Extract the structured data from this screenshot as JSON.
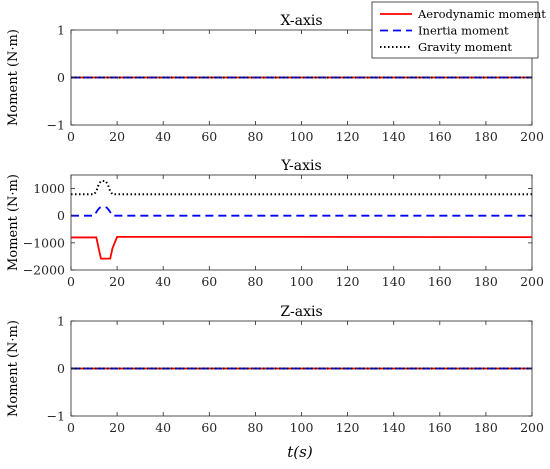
{
  "figure": {
    "xlabel": "t(s)"
  },
  "chart_data": [
    {
      "type": "line",
      "title": "X-axis",
      "ylabel": "Moment (N·m)",
      "xlim": [
        0,
        200
      ],
      "ylim": [
        -1,
        1
      ],
      "xticks": [
        0,
        20,
        40,
        60,
        80,
        100,
        120,
        140,
        160,
        180,
        200
      ],
      "yticks": [
        -1,
        0,
        1
      ],
      "series": [
        {
          "name": "Aerodynamic moment",
          "color": "#ff0000",
          "dash": "solid",
          "x": [
            0,
            200
          ],
          "y": [
            0,
            0
          ]
        },
        {
          "name": "Inertia moment",
          "color": "#0000ff",
          "dash": "dashed",
          "x": [
            0,
            200
          ],
          "y": [
            0,
            0
          ]
        },
        {
          "name": "Gravity moment",
          "color": "#000000",
          "dash": "dotted",
          "x": [
            0,
            200
          ],
          "y": [
            0,
            0
          ]
        }
      ],
      "legend": "top-right"
    },
    {
      "type": "line",
      "title": "Y-axis",
      "ylabel": "Moment (N·m)",
      "xlim": [
        0,
        200
      ],
      "ylim": [
        -2000,
        1500
      ],
      "xticks": [
        0,
        20,
        40,
        60,
        80,
        100,
        120,
        140,
        160,
        180,
        200
      ],
      "yticks": [
        -2000,
        -1000,
        0,
        1000
      ],
      "series": [
        {
          "name": "Aerodynamic moment",
          "color": "#ff0000",
          "dash": "solid",
          "x": [
            0,
            11,
            12,
            13,
            17,
            18,
            20,
            60,
            100,
            140,
            200
          ],
          "y": [
            -800,
            -800,
            -1200,
            -1580,
            -1580,
            -1200,
            -780,
            -780,
            -780,
            -785,
            -790
          ]
        },
        {
          "name": "Inertia moment",
          "color": "#0000ff",
          "dash": "dashed",
          "x": [
            0,
            10,
            11.5,
            12.5,
            14,
            15.5,
            16.5,
            18,
            200
          ],
          "y": [
            0,
            0,
            200,
            300,
            330,
            300,
            200,
            0,
            0
          ]
        },
        {
          "name": "Gravity moment",
          "color": "#000000",
          "dash": "dotted",
          "x": [
            0,
            10,
            11,
            12,
            13,
            15,
            16,
            17,
            18,
            19,
            200
          ],
          "y": [
            790,
            790,
            900,
            1150,
            1280,
            1280,
            1150,
            900,
            790,
            790,
            790
          ]
        }
      ]
    },
    {
      "type": "line",
      "title": "Z-axis",
      "ylabel": "Moment (N·m)",
      "xlim": [
        0,
        200
      ],
      "ylim": [
        -1,
        1
      ],
      "xticks": [
        0,
        20,
        40,
        60,
        80,
        100,
        120,
        140,
        160,
        180,
        200
      ],
      "yticks": [
        -1,
        0,
        1
      ],
      "series": [
        {
          "name": "Aerodynamic moment",
          "color": "#ff0000",
          "dash": "solid",
          "x": [
            0,
            200
          ],
          "y": [
            0,
            0
          ]
        },
        {
          "name": "Inertia moment",
          "color": "#0000ff",
          "dash": "dashed",
          "x": [
            0,
            200
          ],
          "y": [
            0,
            0
          ]
        },
        {
          "name": "Gravity moment",
          "color": "#000000",
          "dash": "dotted",
          "x": [
            0,
            200
          ],
          "y": [
            0,
            0
          ]
        }
      ]
    }
  ]
}
